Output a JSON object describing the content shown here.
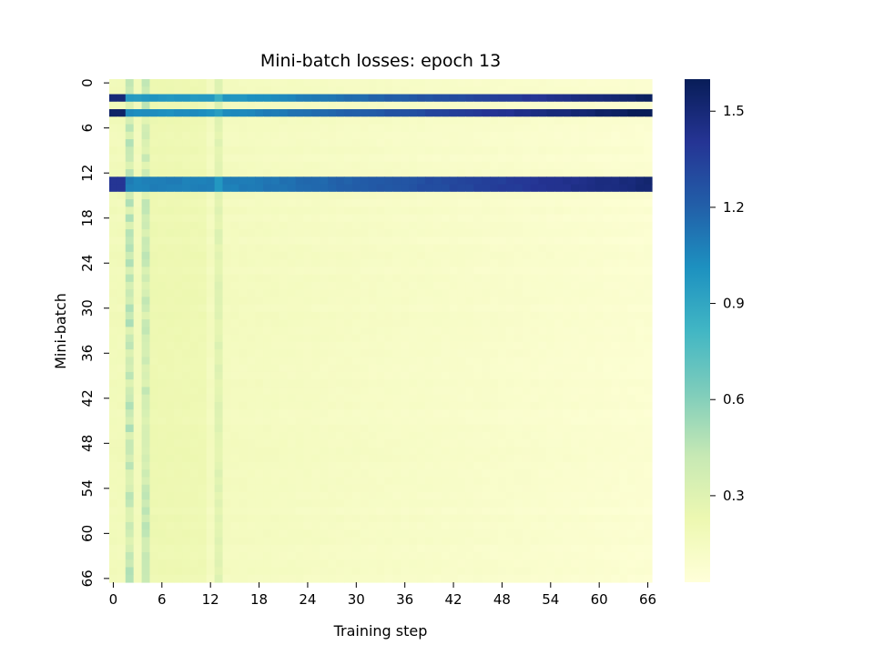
{
  "chart_data": {
    "type": "heatmap",
    "title": "Mini-batch losses: epoch 13",
    "xlabel": "Training step",
    "ylabel": "Mini-batch",
    "n_rows": 67,
    "n_cols": 67,
    "x_ticks": [
      "0",
      "6",
      "12",
      "18",
      "24",
      "30",
      "36",
      "42",
      "48",
      "54",
      "60",
      "66"
    ],
    "y_ticks": [
      "0",
      "6",
      "12",
      "18",
      "24",
      "30",
      "36",
      "42",
      "48",
      "54",
      "60",
      "66"
    ],
    "colormap": "YlGnBu",
    "colorbar": {
      "vmin": 0.03,
      "vmax": 1.6,
      "ticks": [
        "0.3",
        "0.6",
        "0.9",
        "1.2",
        "1.5"
      ]
    },
    "high_loss_rows": [
      {
        "row": 2,
        "start": 1.5,
        "dip": 0.95,
        "end": 1.55
      },
      {
        "row": 4,
        "start": 1.55,
        "dip": 1.0,
        "end": 1.6
      },
      {
        "row": 13,
        "start": 1.4,
        "dip": 1.05,
        "end": 1.5
      },
      {
        "row": 14,
        "start": 1.4,
        "dip": 1.05,
        "end": 1.5
      }
    ],
    "low_loss_range": [
      0.03,
      0.5
    ],
    "notes": "Rows other than the high-loss rows stay near 0.03–0.15 loss; columns 2, 4 and 13 show elevated values (~0.3–0.5)."
  }
}
